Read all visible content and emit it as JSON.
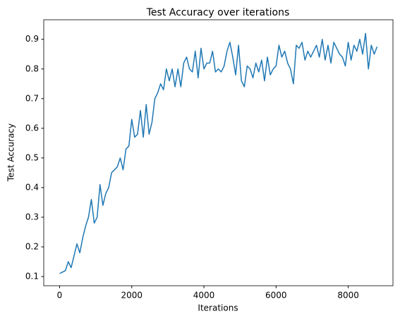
{
  "chart_data": {
    "type": "line",
    "title": "Test Accuracy over iterations",
    "x_label": "Iterations",
    "y_label": "Test Accuracy",
    "x": [
      0,
      80,
      160,
      240,
      320,
      400,
      480,
      560,
      640,
      720,
      800,
      880,
      960,
      1040,
      1120,
      1200,
      1280,
      1360,
      1440,
      1520,
      1600,
      1680,
      1760,
      1840,
      1920,
      2000,
      2080,
      2160,
      2240,
      2320,
      2400,
      2480,
      2560,
      2640,
      2720,
      2800,
      2880,
      2960,
      3040,
      3120,
      3200,
      3280,
      3360,
      3440,
      3520,
      3600,
      3680,
      3760,
      3840,
      3920,
      4000,
      4080,
      4160,
      4240,
      4320,
      4400,
      4480,
      4560,
      4640,
      4720,
      4800,
      4880,
      4960,
      5040,
      5120,
      5200,
      5280,
      5360,
      5440,
      5520,
      5600,
      5680,
      5760,
      5840,
      5920,
      6000,
      6080,
      6160,
      6240,
      6320,
      6400,
      6480,
      6560,
      6640,
      6720,
      6800,
      6880,
      6960,
      7040,
      7120,
      7200,
      7280,
      7360,
      7440,
      7520,
      7600,
      7680,
      7760,
      7840,
      7920,
      8000,
      8080,
      8160,
      8240,
      8320,
      8400,
      8480,
      8560,
      8640,
      8720,
      8800
    ],
    "series": [
      {
        "color": "#1f77b4",
        "values": [
          0.11,
          0.115,
          0.12,
          0.15,
          0.13,
          0.17,
          0.21,
          0.18,
          0.23,
          0.27,
          0.3,
          0.36,
          0.28,
          0.3,
          0.41,
          0.34,
          0.38,
          0.4,
          0.45,
          0.46,
          0.47,
          0.5,
          0.46,
          0.53,
          0.54,
          0.63,
          0.57,
          0.58,
          0.66,
          0.57,
          0.68,
          0.58,
          0.62,
          0.7,
          0.72,
          0.75,
          0.73,
          0.8,
          0.76,
          0.8,
          0.74,
          0.8,
          0.74,
          0.82,
          0.84,
          0.8,
          0.79,
          0.86,
          0.77,
          0.87,
          0.8,
          0.82,
          0.82,
          0.86,
          0.79,
          0.8,
          0.79,
          0.81,
          0.86,
          0.89,
          0.84,
          0.78,
          0.88,
          0.76,
          0.74,
          0.81,
          0.8,
          0.77,
          0.82,
          0.79,
          0.83,
          0.76,
          0.84,
          0.78,
          0.8,
          0.81,
          0.88,
          0.84,
          0.86,
          0.82,
          0.8,
          0.75,
          0.88,
          0.87,
          0.89,
          0.83,
          0.86,
          0.84,
          0.86,
          0.88,
          0.84,
          0.9,
          0.83,
          0.88,
          0.82,
          0.89,
          0.87,
          0.85,
          0.84,
          0.81,
          0.89,
          0.83,
          0.88,
          0.86,
          0.9,
          0.85,
          0.92,
          0.8,
          0.88,
          0.85,
          0.875
        ]
      }
    ],
    "xlim": [
      -440,
      9240
    ],
    "ylim": [
      0.069,
      0.966
    ],
    "xticks": [
      0,
      2000,
      4000,
      6000,
      8000
    ],
    "yticks": [
      0.1,
      0.2,
      0.3,
      0.4,
      0.5,
      0.6,
      0.7,
      0.8,
      0.9
    ]
  }
}
